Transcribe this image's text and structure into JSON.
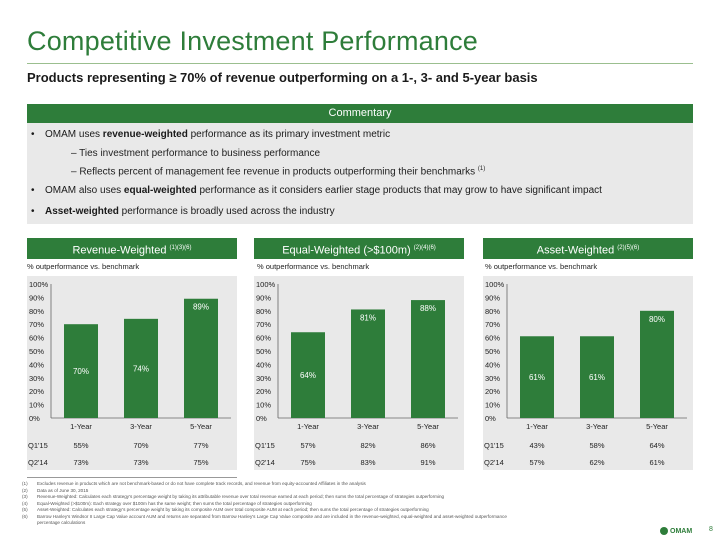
{
  "title": "Competitive Investment Performance",
  "subtitle": "Products representing ≥ 70% of revenue outperforming on a 1-, 3- and 5-year basis",
  "commentary": {
    "header": "Commentary",
    "b1_pre": "OMAM uses ",
    "b1_bold": "revenue-weighted",
    "b1_post": " performance as its primary investment metric",
    "s1": "–  Ties investment performance to business performance",
    "s2": "–  Reflects percent of management fee revenue in products outperforming their benchmarks",
    "s2_sup": "(1)",
    "b2_pre": "OMAM also uses ",
    "b2_bold": "equal-weighted",
    "b2_post": " performance as it considers earlier stage products that may grow to have significant impact",
    "b3_bold": "Asset-weighted",
    "b3_post": " performance is broadly used across the industry"
  },
  "colors": {
    "accent": "#2e7d3a",
    "bar": "#2e7d3a",
    "panel_bg": "#e9e9e9"
  },
  "chart_data": [
    {
      "type": "bar",
      "title": "Revenue-Weighted",
      "title_sup": "(1)(3)(6)",
      "ylabel": "% outperformance vs. benchmark",
      "categories": [
        "1-Year",
        "3-Year",
        "5-Year"
      ],
      "values": [
        70,
        74,
        89
      ],
      "value_labels": [
        "70%",
        "74%",
        "89%"
      ],
      "ylim": [
        0,
        100
      ],
      "yticks": [
        "0%",
        "10%",
        "20%",
        "30%",
        "40%",
        "50%",
        "60%",
        "70%",
        "80%",
        "90%",
        "100%"
      ],
      "rows": [
        {
          "label": "Q1'15",
          "values": [
            "55%",
            "70%",
            "77%"
          ]
        },
        {
          "label": "Q2'14",
          "values": [
            "73%",
            "73%",
            "75%"
          ]
        }
      ]
    },
    {
      "type": "bar",
      "title": "Equal-Weighted (>$100m)",
      "title_sup": "(2)(4)(6)",
      "ylabel": "% outperformance vs. benchmark",
      "categories": [
        "1-Year",
        "3-Year",
        "5-Year"
      ],
      "values": [
        64,
        81,
        88
      ],
      "value_labels": [
        "64%",
        "81%",
        "88%"
      ],
      "ylim": [
        0,
        100
      ],
      "yticks": [
        "0%",
        "10%",
        "20%",
        "30%",
        "40%",
        "50%",
        "60%",
        "70%",
        "80%",
        "90%",
        "100%"
      ],
      "rows": [
        {
          "label": "Q1'15",
          "values": [
            "57%",
            "82%",
            "86%"
          ]
        },
        {
          "label": "Q2'14",
          "values": [
            "75%",
            "83%",
            "91%"
          ]
        }
      ]
    },
    {
      "type": "bar",
      "title": "Asset-Weighted",
      "title_sup": "(2)(5)(6)",
      "ylabel": "% outperformance vs. benchmark",
      "categories": [
        "1-Year",
        "3-Year",
        "5-Year"
      ],
      "values": [
        61,
        61,
        80
      ],
      "value_labels": [
        "61%",
        "61%",
        "80%"
      ],
      "ylim": [
        0,
        100
      ],
      "yticks": [
        "0%",
        "10%",
        "20%",
        "30%",
        "40%",
        "50%",
        "60%",
        "70%",
        "80%",
        "90%",
        "100%"
      ],
      "rows": [
        {
          "label": "Q1'15",
          "values": [
            "43%",
            "58%",
            "64%"
          ]
        },
        {
          "label": "Q2'14",
          "values": [
            "57%",
            "62%",
            "61%"
          ]
        }
      ]
    }
  ],
  "footnotes": [
    {
      "num": "(1)",
      "text": "Excludes revenue in products which are not benchmark-based or do not have complete track records, and revenue from equity-accounted Affiliates in the analysis"
    },
    {
      "num": "(2)",
      "text": "Data as of June 30, 2015"
    },
    {
      "num": "(3)",
      "text": "Revenue-Weighted: Calculates each strategy's percentage weight by taking its attributable revenue over total revenue earned at each period; then sums the total percentage of strategies outperforming"
    },
    {
      "num": "(4)",
      "text": "Equal-Weighted (>$100m): Each strategy over $100m has the same weight; then sums the total percentage of strategies outperforming"
    },
    {
      "num": "(5)",
      "text": "Asset-Weighted: Calculates each strategy's percentage weight by taking its composite AUM over total composite AUM at each period; then sums the total percentage of strategies outperforming"
    },
    {
      "num": "(6)",
      "text": "Barrow Hanley's Windsor II Large Cap Value account AUM and returns are separated from Barrow Hanley's Large Cap Value composite and are included in the revenue-weighted, equal-weighted and asset-weighted outperformance"
    },
    {
      "num": "",
      "text": "percentage calculations"
    }
  ],
  "logo_text": "OMAM",
  "page_number": "8"
}
